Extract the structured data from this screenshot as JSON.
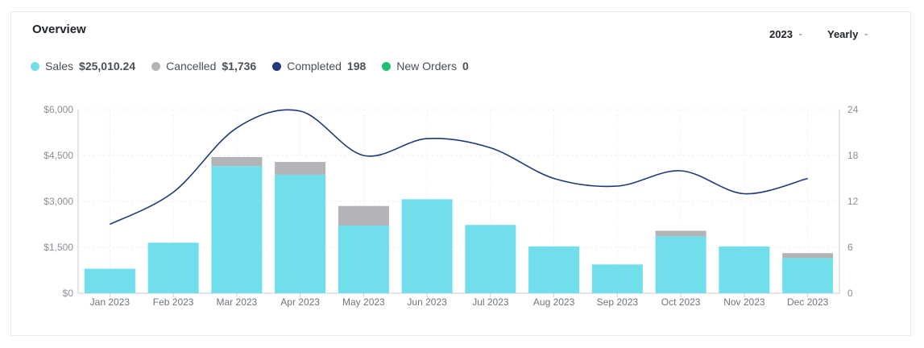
{
  "header": {
    "title": "Overview",
    "year_select": "2023",
    "period_select": "Yearly"
  },
  "legend": [
    {
      "label": "Sales",
      "value": "$25,010.24",
      "color": "#71deec"
    },
    {
      "label": "Cancelled",
      "value": "$1,736",
      "color": "#b2b4b8"
    },
    {
      "label": "Completed",
      "value": "198",
      "color": "#1f3a7a"
    },
    {
      "label": "New Orders",
      "value": "0",
      "color": "#1fbf75"
    }
  ],
  "chart_data": {
    "type": "bar",
    "stacked": true,
    "categories": [
      "Jan 2023",
      "Feb 2023",
      "Mar 2023",
      "Apr 2023",
      "May 2023",
      "Jun 2023",
      "Jul 2023",
      "Aug 2023",
      "Sep 2023",
      "Oct 2023",
      "Nov 2023",
      "Dec 2023"
    ],
    "series": [
      {
        "name": "Sales",
        "axis": "left",
        "color": "#71deec",
        "values": [
          800,
          1650,
          4150,
          3870,
          2210,
          3070,
          2230,
          1530,
          940,
          1860,
          1530,
          1150
        ]
      },
      {
        "name": "Cancelled",
        "axis": "left",
        "color": "#b2b4b8",
        "values": [
          0,
          0,
          300,
          420,
          640,
          0,
          0,
          0,
          0,
          180,
          0,
          160
        ]
      },
      {
        "name": "Completed",
        "type": "line",
        "axis": "right",
        "color": "#1f3a7a",
        "values": [
          9,
          13.2,
          21.6,
          23.8,
          18,
          20.2,
          19,
          15,
          14,
          16,
          13,
          15
        ]
      }
    ],
    "y_left": {
      "ticks": [
        "$0",
        "$1,500",
        "$3,000",
        "$4,500",
        "$6,000"
      ],
      "ylim": [
        0,
        6000
      ]
    },
    "y_right": {
      "ticks": [
        "0",
        "6",
        "12",
        "18",
        "24"
      ],
      "ylim": [
        0,
        24
      ]
    },
    "grid": true
  }
}
